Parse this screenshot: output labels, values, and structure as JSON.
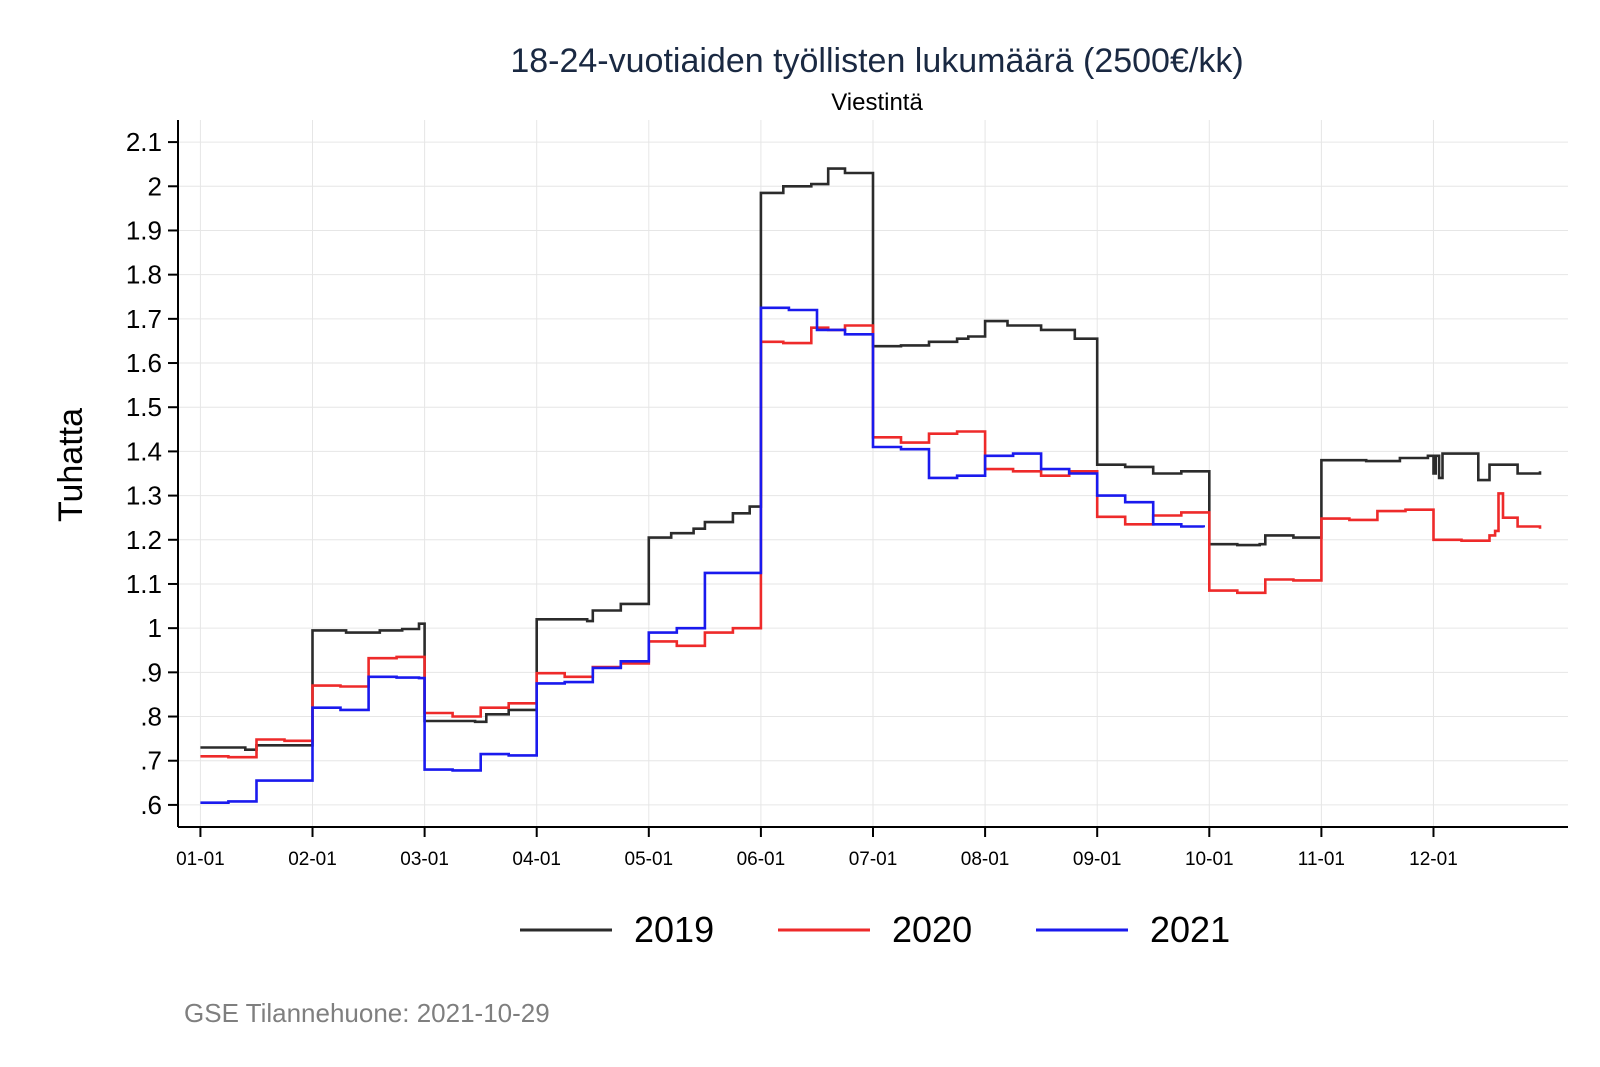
{
  "chart_data": {
    "type": "line",
    "title": "18-24-vuotiaiden työllisten lukumäärä (2500€/kk)",
    "subtitle": "Viestintä",
    "ylabel": "Tuhatta",
    "xlabel": "",
    "ylim": [
      0.55,
      2.15
    ],
    "xlim": [
      -0.2,
      12.2
    ],
    "grid": true,
    "legend_position": "bottom",
    "yticks": [
      {
        "value": 0.6,
        "label": ".6"
      },
      {
        "value": 0.7,
        "label": ".7"
      },
      {
        "value": 0.8,
        "label": ".8"
      },
      {
        "value": 0.9,
        "label": ".9"
      },
      {
        "value": 1.0,
        "label": "1"
      },
      {
        "value": 1.1,
        "label": "1.1"
      },
      {
        "value": 1.2,
        "label": "1.2"
      },
      {
        "value": 1.3,
        "label": "1.3"
      },
      {
        "value": 1.4,
        "label": "1.4"
      },
      {
        "value": 1.5,
        "label": "1.5"
      },
      {
        "value": 1.6,
        "label": "1.6"
      },
      {
        "value": 1.7,
        "label": "1.7"
      },
      {
        "value": 1.8,
        "label": "1.8"
      },
      {
        "value": 1.9,
        "label": "1.9"
      },
      {
        "value": 2.0,
        "label": "2"
      },
      {
        "value": 2.1,
        "label": "2.1"
      }
    ],
    "xticks": [
      {
        "value": 0,
        "label": "01-01"
      },
      {
        "value": 1,
        "label": "02-01"
      },
      {
        "value": 2,
        "label": "03-01"
      },
      {
        "value": 3,
        "label": "04-01"
      },
      {
        "value": 4,
        "label": "05-01"
      },
      {
        "value": 5,
        "label": "06-01"
      },
      {
        "value": 6,
        "label": "07-01"
      },
      {
        "value": 7,
        "label": "08-01"
      },
      {
        "value": 8,
        "label": "09-01"
      },
      {
        "value": 9,
        "label": "10-01"
      },
      {
        "value": 10,
        "label": "11-01"
      },
      {
        "value": 11,
        "label": "12-01"
      }
    ],
    "series": [
      {
        "name": "2019",
        "color": "#2b2b2b",
        "x": [
          0.0,
          0.2,
          0.4,
          0.5,
          0.7,
          1.0,
          1.3,
          1.6,
          1.8,
          1.95,
          2.0,
          2.2,
          2.45,
          2.55,
          2.75,
          3.0,
          3.25,
          3.45,
          3.5,
          3.75,
          4.0,
          4.2,
          4.4,
          4.5,
          4.75,
          4.9,
          5.0,
          5.2,
          5.45,
          5.6,
          5.75,
          6.0,
          6.25,
          6.5,
          6.75,
          6.85,
          7.0,
          7.2,
          7.5,
          7.8,
          8.0,
          8.25,
          8.5,
          8.75,
          9.0,
          9.25,
          9.45,
          9.5,
          9.75,
          10.0,
          10.4,
          10.7,
          10.95,
          11.0,
          11.02,
          11.05,
          11.08,
          11.4,
          11.5,
          11.75,
          11.95
        ],
        "values": [
          0.73,
          0.73,
          0.725,
          0.735,
          0.735,
          0.995,
          0.99,
          0.995,
          0.998,
          1.01,
          0.79,
          0.79,
          0.788,
          0.805,
          0.815,
          1.02,
          1.02,
          1.016,
          1.04,
          1.055,
          1.205,
          1.215,
          1.225,
          1.24,
          1.26,
          1.275,
          1.985,
          2.0,
          2.005,
          2.04,
          2.03,
          1.638,
          1.64,
          1.648,
          1.655,
          1.66,
          1.695,
          1.685,
          1.675,
          1.655,
          1.37,
          1.365,
          1.35,
          1.355,
          1.19,
          1.188,
          1.19,
          1.21,
          1.205,
          1.38,
          1.378,
          1.385,
          1.39,
          1.35,
          1.39,
          1.34,
          1.395,
          1.335,
          1.37,
          1.35,
          1.355
        ]
      },
      {
        "name": "2020",
        "color": "#ee2a2a",
        "x": [
          0.0,
          0.25,
          0.5,
          0.75,
          1.0,
          1.25,
          1.5,
          1.75,
          1.95,
          2.0,
          2.25,
          2.5,
          2.75,
          3.0,
          3.25,
          3.5,
          3.75,
          4.0,
          4.25,
          4.5,
          4.75,
          5.0,
          5.2,
          5.45,
          5.6,
          5.75,
          6.0,
          6.25,
          6.5,
          6.75,
          7.0,
          7.25,
          7.5,
          7.75,
          8.0,
          8.25,
          8.5,
          8.75,
          9.0,
          9.25,
          9.5,
          9.75,
          10.0,
          10.25,
          10.5,
          10.75,
          11.0,
          11.25,
          11.5,
          11.55,
          11.58,
          11.62,
          11.75,
          11.95
        ],
        "values": [
          0.71,
          0.708,
          0.748,
          0.745,
          0.87,
          0.868,
          0.932,
          0.935,
          0.935,
          0.808,
          0.8,
          0.82,
          0.83,
          0.898,
          0.89,
          0.912,
          0.92,
          0.97,
          0.96,
          0.99,
          1.0,
          1.648,
          1.645,
          1.68,
          1.675,
          1.685,
          1.432,
          1.42,
          1.44,
          1.445,
          1.36,
          1.355,
          1.345,
          1.355,
          1.252,
          1.235,
          1.255,
          1.262,
          1.085,
          1.08,
          1.11,
          1.108,
          1.248,
          1.245,
          1.265,
          1.268,
          1.2,
          1.198,
          1.21,
          1.22,
          1.305,
          1.25,
          1.23,
          1.225
        ]
      },
      {
        "name": "2021",
        "color": "#1a1aee",
        "x": [
          0.0,
          0.25,
          0.5,
          0.75,
          1.0,
          1.25,
          1.5,
          1.75,
          1.95,
          2.0,
          2.25,
          2.5,
          2.75,
          3.0,
          3.25,
          3.5,
          3.75,
          4.0,
          4.25,
          4.5,
          4.75,
          5.0,
          5.25,
          5.5,
          5.75,
          6.0,
          6.25,
          6.5,
          6.75,
          7.0,
          7.25,
          7.5,
          7.75,
          8.0,
          8.25,
          8.5,
          8.75,
          8.95
        ],
        "values": [
          0.605,
          0.608,
          0.655,
          0.655,
          0.82,
          0.815,
          0.89,
          0.888,
          0.887,
          0.68,
          0.678,
          0.715,
          0.712,
          0.875,
          0.878,
          0.91,
          0.925,
          0.99,
          1.0,
          1.125,
          1.125,
          1.725,
          1.72,
          1.675,
          1.665,
          1.41,
          1.405,
          1.34,
          1.345,
          1.39,
          1.395,
          1.36,
          1.35,
          1.3,
          1.285,
          1.235,
          1.23,
          1.228
        ]
      }
    ]
  },
  "footer": {
    "source": "GSE Tilannehuone: 2021-10-29"
  }
}
